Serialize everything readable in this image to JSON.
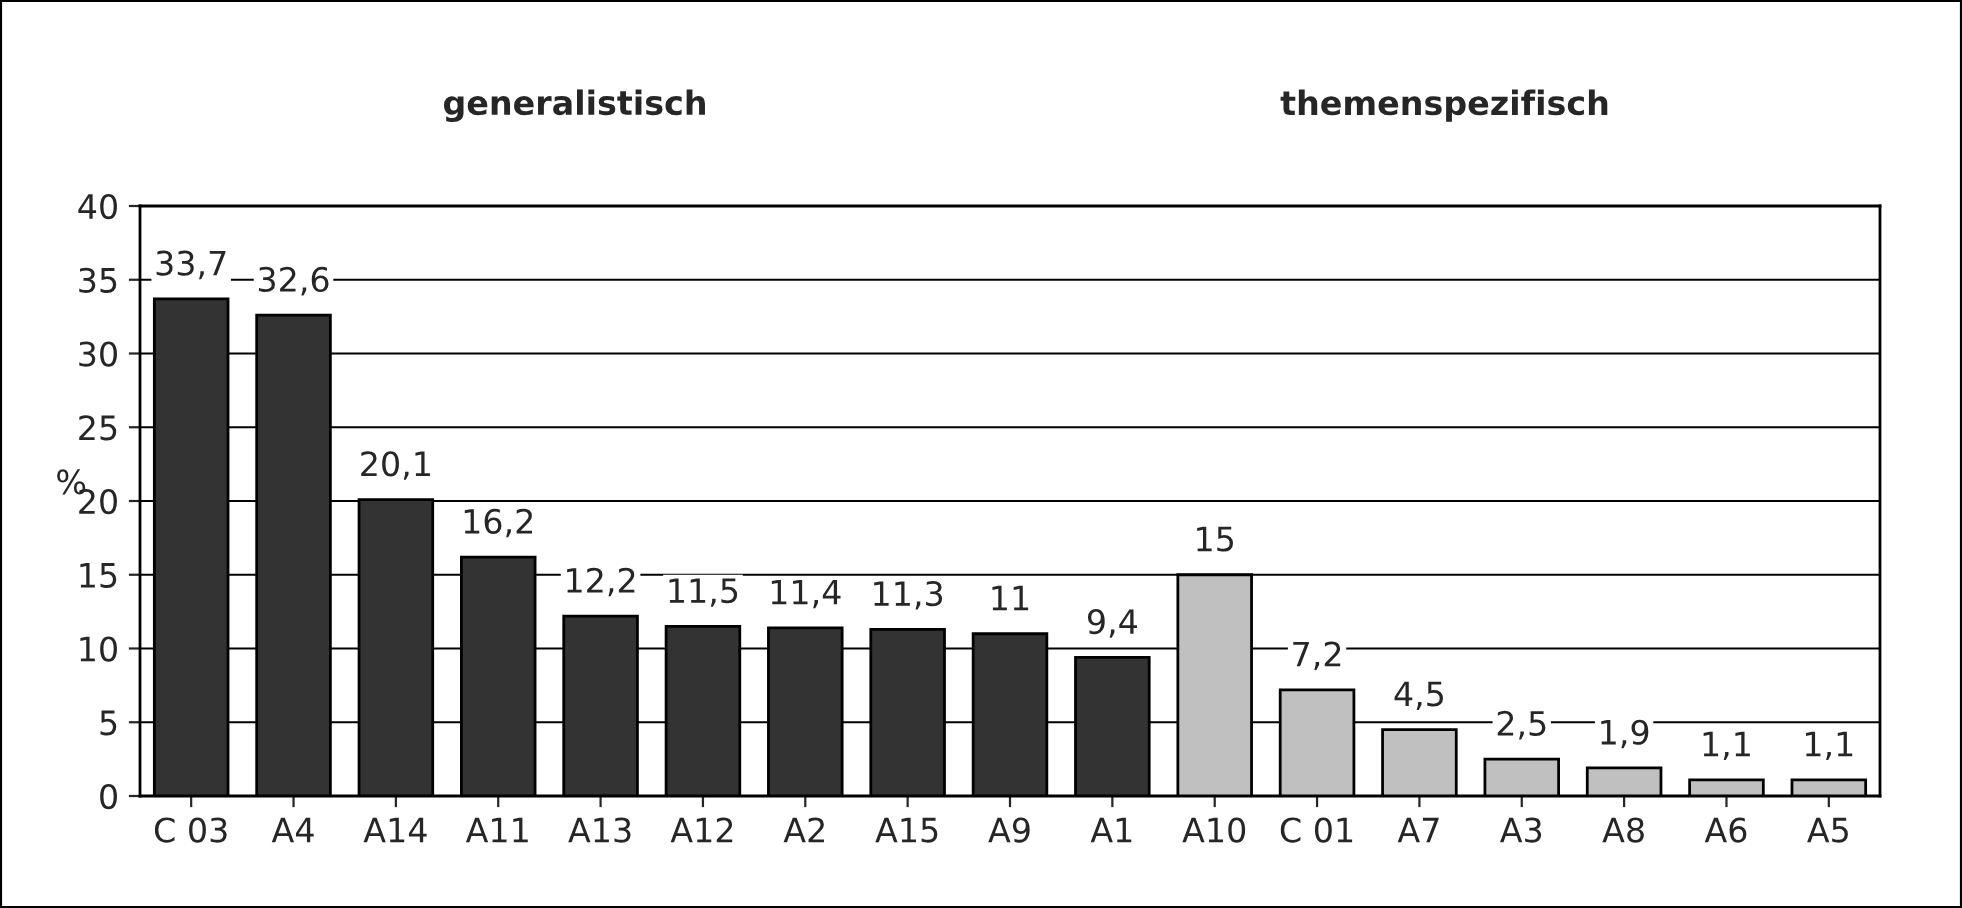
{
  "chart_data": {
    "type": "bar",
    "categories": [
      "C 03",
      "A4",
      "A14",
      "A11",
      "A13",
      "A12",
      "A2",
      "A15",
      "A9",
      "A1",
      "A10",
      "C 01",
      "A7",
      "A3",
      "A8",
      "A6",
      "A5"
    ],
    "values": [
      33.7,
      32.6,
      20.1,
      16.2,
      12.2,
      11.5,
      11.4,
      11.3,
      11,
      9.4,
      15,
      7.2,
      4.5,
      2.5,
      1.9,
      1.1,
      1.1
    ],
    "value_labels": [
      "33,7",
      "32,6",
      "20,1",
      "16,2",
      "12,2",
      "11,5",
      "11,4",
      "11,3",
      "11",
      "9,4",
      "15",
      "7,2",
      "4,5",
      "2,5",
      "1,9",
      "1,1",
      "1,1"
    ],
    "colors": [
      "#333333",
      "#333333",
      "#333333",
      "#333333",
      "#333333",
      "#333333",
      "#333333",
      "#333333",
      "#333333",
      "#333333",
      "#c0c0c0",
      "#c0c0c0",
      "#c0c0c0",
      "#c0c0c0",
      "#c0c0c0",
      "#c0c0c0",
      "#c0c0c0"
    ],
    "ylabel": "%",
    "annotations": [
      "generalistisch",
      "themenspezifisch"
    ],
    "ylim": [
      0,
      40
    ],
    "yticks": [
      0,
      5,
      10,
      15,
      20,
      25,
      30,
      35,
      40
    ],
    "grid": "y",
    "legend": false
  }
}
